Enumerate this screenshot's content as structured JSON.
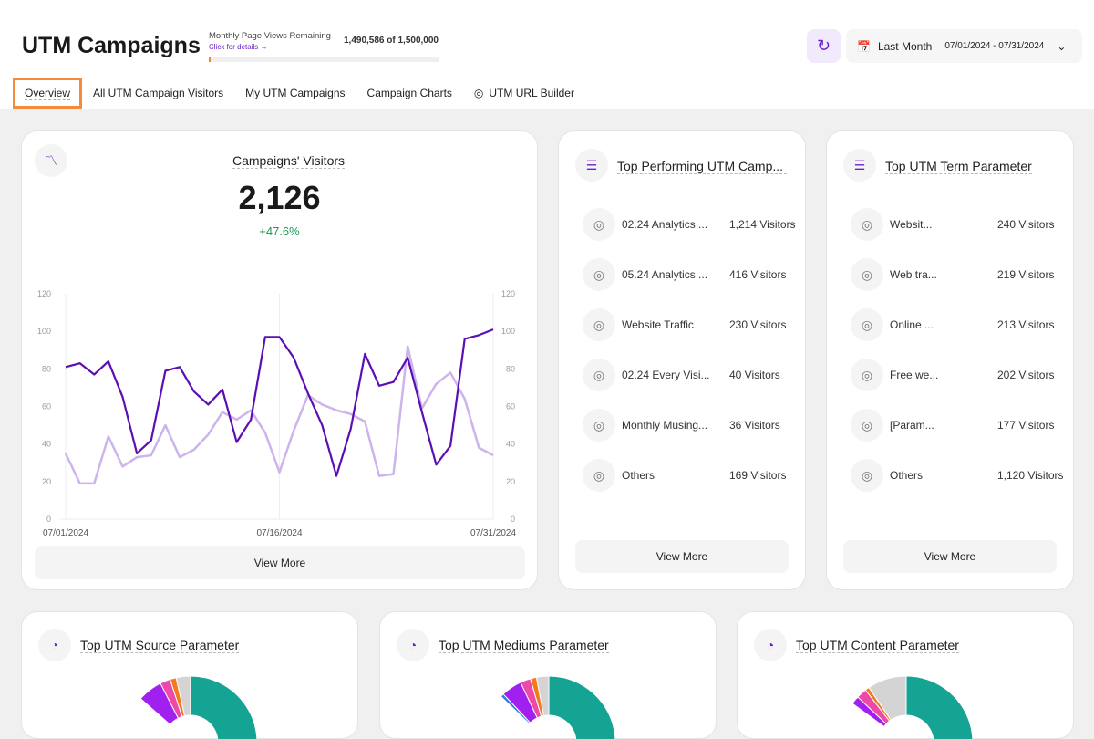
{
  "header": {
    "title": "UTM Campaigns",
    "pv_label": "Monthly Page Views Remaining",
    "pv_link": "Click for details →",
    "pv_count": "1,490,586 of 1,500,000",
    "pv_used_fraction": 0.0063,
    "date_label": "Last Month",
    "date_range": "07/01/2024 - 07/31/2024"
  },
  "tabs": [
    "Overview",
    "All UTM Campaign Visitors",
    "My UTM Campaigns",
    "Campaign Charts",
    "UTM URL Builder"
  ],
  "visitors": {
    "title": "Campaigns' Visitors",
    "total": "2,126",
    "change": "+47.6%",
    "view_more": "View More"
  },
  "chart_data": {
    "type": "line",
    "x_ticks": [
      "07/01/2024",
      "07/16/2024",
      "07/31/2024"
    ],
    "ylim": [
      0,
      120
    ],
    "y_ticks": [
      0,
      20,
      40,
      60,
      80,
      100,
      120
    ],
    "grid": "vertical at x ticks",
    "series": [
      {
        "color": "#5b0fb3",
        "values": [
          81,
          83,
          77,
          84,
          65,
          35,
          42,
          79,
          81,
          68,
          61,
          69,
          41,
          53,
          97,
          97,
          86,
          67,
          50,
          23,
          48,
          88,
          71,
          73,
          86,
          57,
          29,
          39,
          96,
          98,
          101
        ]
      },
      {
        "color": "#cdb4ec",
        "values": [
          35,
          19,
          19,
          44,
          28,
          33,
          34,
          50,
          33,
          37,
          45,
          57,
          53,
          58,
          46,
          25,
          47,
          66,
          61,
          58,
          56,
          52,
          23,
          24,
          92,
          59,
          72,
          78,
          64,
          38,
          34
        ]
      }
    ]
  },
  "campaigns": {
    "title": "Top Performing UTM Camp...",
    "view_more": "View More",
    "items": [
      {
        "name": "02.24 Analytics ...",
        "value": "1,214 Visitors"
      },
      {
        "name": "05.24 Analytics ...",
        "value": "416 Visitors"
      },
      {
        "name": "Website Traffic",
        "value": "230 Visitors"
      },
      {
        "name": "02.24 Every Visi...",
        "value": "40 Visitors"
      },
      {
        "name": "Monthly Musing...",
        "value": "36 Visitors"
      },
      {
        "name": "Others",
        "value": "169 Visitors"
      }
    ]
  },
  "terms": {
    "title": "Top UTM Term Parameter",
    "view_more": "View More",
    "items": [
      {
        "name": "Websit...",
        "value": "240 Visitors"
      },
      {
        "name": "Web tra...",
        "value": "219 Visitors"
      },
      {
        "name": "Online ...",
        "value": "213 Visitors"
      },
      {
        "name": "Free we...",
        "value": "202 Visitors"
      },
      {
        "name": "[Param...",
        "value": "177 Visitors"
      },
      {
        "name": "Others",
        "value": "1,120 Visitors"
      }
    ]
  },
  "donuts": [
    {
      "title": "Top UTM Source Parameter"
    },
    {
      "title": "Top UTM Mediums Parameter"
    },
    {
      "title": "Top UTM Content Parameter"
    }
  ]
}
